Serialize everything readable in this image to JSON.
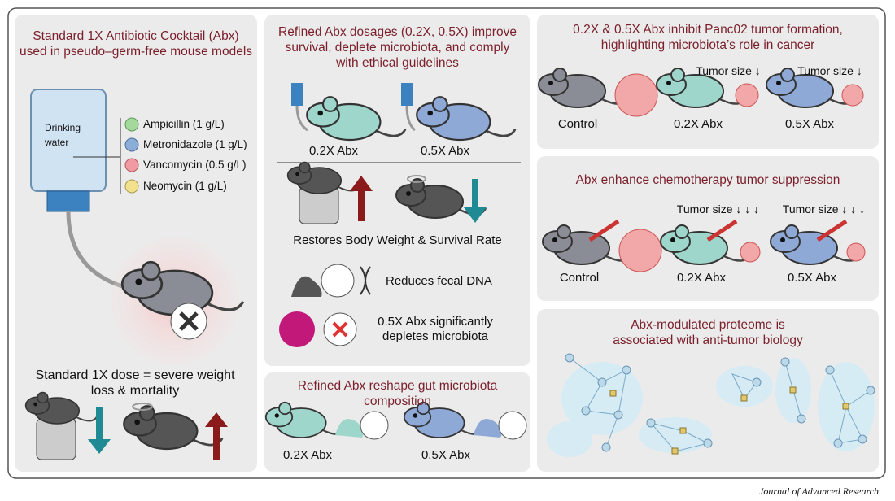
{
  "standard_dose": {
    "title": "Standard 1X Antibiotic Cocktail (Abx) used in pseudo–germ-free mouse models",
    "bottle_label": "Drinking water",
    "antibiotics": [
      "Ampicillin (1 g/L)",
      "Metronidazole (1 g/L)",
      "Vancomycin (0.5 g/L)",
      "Neomycin (1 g/L)"
    ],
    "caption": "Standard 1X dose = severe weight loss & mortality"
  },
  "refined_dosage": {
    "title": "Refined Abx dosages (0.2X, 0.5X) improve survival, deplete microbiota, and comply with ethical guidelines",
    "groups": [
      "0.2X Abx",
      "0.5X Abx"
    ],
    "findings": [
      "Restores Body Weight & Survival Rate",
      "Reduces fecal DNA",
      "0.5X Abx significantly depletes microbiota"
    ]
  },
  "microbiota_composition": {
    "title": "Refined Abx reshape gut microbiota composition",
    "groups": [
      "0.2X Abx",
      "0.5X Abx"
    ]
  },
  "tumor_formation": {
    "title": "0.2X & 0.5X Abx inhibit Panc02 tumor formation, highlighting microbiota’s role in cancer",
    "annotations": [
      "Tumor size ↓",
      "Tumor size ↓"
    ],
    "groups": [
      "Control",
      "0.2X Abx",
      "0.5X Abx"
    ]
  },
  "chemotherapy": {
    "title": "Abx enhance chemotherapy tumor suppression",
    "annotations": [
      "Tumor size ↓ ↓ ↓",
      "Tumor size ↓ ↓ ↓"
    ],
    "groups": [
      "Control",
      "0.2X Abx",
      "0.5X Abx"
    ]
  },
  "proteome": {
    "title": "Abx-modulated proteome is associated with anti-tumor biology"
  },
  "footer": "Journal of Advanced Research"
}
